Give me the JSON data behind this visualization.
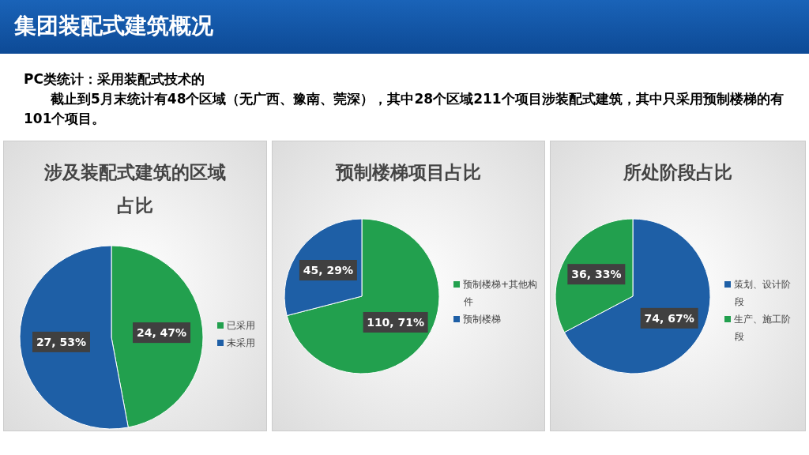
{
  "chart_data": [
    {
      "type": "other",
      "title": "集团装配式建筑概况",
      "annotations": [
        "PC类统计：采用装配式技术的",
        "截止到5月末统计有48个区域（无广西、豫南、莞深），其中28个区域211个项目涉装配式建筑，其中只采用预制楼梯的有101个项目。"
      ]
    },
    {
      "type": "pie",
      "title": "涉及装配式建筑的区域占比",
      "categories": [
        "已采用",
        "未采用"
      ],
      "values": [
        24,
        27
      ],
      "colors": [
        "#22a04e",
        "#1e5fa6"
      ],
      "value_labels": [
        "24, 47%",
        "27, 53%"
      ],
      "legend": "right"
    },
    {
      "type": "pie",
      "title": "预制楼梯项目占比",
      "categories": [
        "预制楼梯+其他构件",
        "预制楼梯"
      ],
      "values": [
        110,
        45
      ],
      "colors": [
        "#22a04e",
        "#1e5fa6"
      ],
      "value_labels": [
        "110, 71%",
        "45, 29%"
      ],
      "legend": "right"
    },
    {
      "type": "pie",
      "title": "所处阶段占比",
      "categories": [
        "策划、设计阶段",
        "生产、施工阶段"
      ],
      "values": [
        74,
        36
      ],
      "colors": [
        "#1e5fa6",
        "#22a04e"
      ],
      "value_labels": [
        "74, 67%",
        "36, 33%"
      ],
      "legend": "right"
    }
  ]
}
